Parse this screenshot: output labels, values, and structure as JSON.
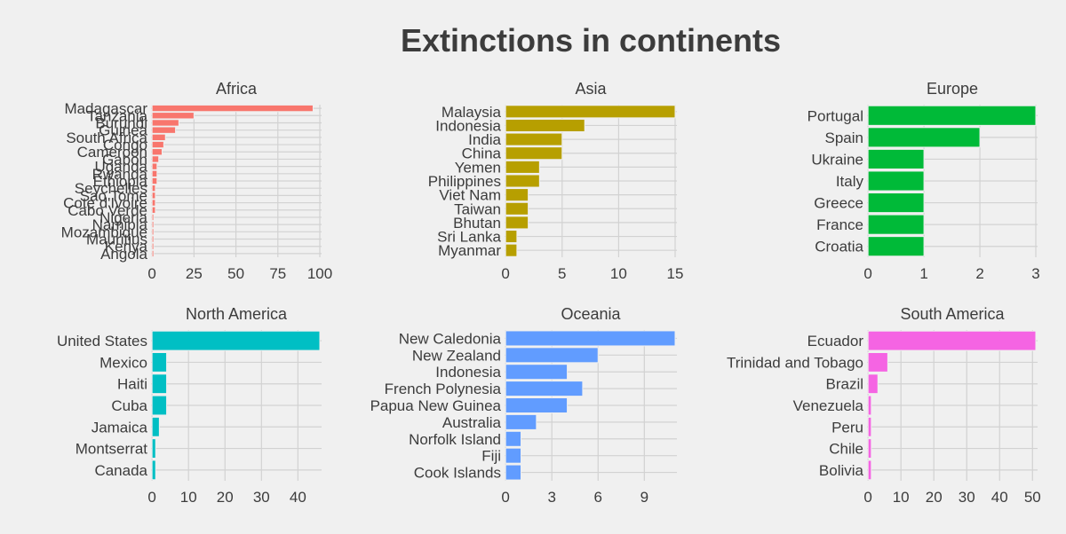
{
  "chart_data": {
    "type": "bar",
    "orientation": "horizontal",
    "title": "Extinctions in continents",
    "grid": true,
    "legend": "none",
    "facets": [
      {
        "name": "Africa",
        "color": "#f8766d",
        "xlim": [
          0,
          100
        ],
        "ticks": [
          0,
          25,
          50,
          75,
          100
        ],
        "categories": [
          "Madagascar",
          "Tanzania",
          "Burundi",
          "Guinea",
          "South Africa",
          "Congo",
          "Cameroon",
          "Gabon",
          "Uganda",
          "Rwanda",
          "Ethiopia",
          "Seychelles",
          "Sao Tome",
          "Cote d'Ivoire",
          "Cabo Verde",
          "Nigeria",
          "Namibia",
          "Mozambique",
          "Mauritius",
          "Kenya",
          "Angola"
        ],
        "values": [
          96,
          25,
          16,
          14,
          8,
          7,
          6,
          4,
          3,
          3,
          3,
          2,
          2,
          2,
          2,
          1,
          1,
          1,
          1,
          1,
          1
        ]
      },
      {
        "name": "Asia",
        "color": "#b79f00",
        "xlim": [
          0,
          15
        ],
        "ticks": [
          0,
          5,
          10,
          15
        ],
        "categories": [
          "Malaysia",
          "Indonesia",
          "India",
          "China",
          "Yemen",
          "Philippines",
          "Viet Nam",
          "Taiwan",
          "Bhutan",
          "Sri Lanka",
          "Myanmar"
        ],
        "values": [
          15,
          7,
          5,
          5,
          3,
          3,
          2,
          2,
          2,
          1,
          1
        ]
      },
      {
        "name": "Europe",
        "color": "#00ba38",
        "xlim": [
          0,
          3
        ],
        "ticks": [
          0,
          1,
          2,
          3
        ],
        "categories": [
          "Portugal",
          "Spain",
          "Ukraine",
          "Italy",
          "Greece",
          "France",
          "Croatia"
        ],
        "values": [
          3,
          2,
          1,
          1,
          1,
          1,
          1
        ]
      },
      {
        "name": "North America",
        "color": "#00bfc4",
        "xlim": [
          0,
          46
        ],
        "ticks": [
          0,
          10,
          20,
          30,
          40
        ],
        "categories": [
          "United States",
          "Mexico",
          "Haiti",
          "Cuba",
          "Jamaica",
          "Montserrat",
          "Canada"
        ],
        "values": [
          46,
          4,
          4,
          4,
          2,
          1,
          1
        ]
      },
      {
        "name": "Oceania",
        "color": "#619cff",
        "xlim": [
          0,
          11
        ],
        "ticks": [
          0,
          3,
          6,
          9
        ],
        "categories": [
          "New Caledonia",
          "New Zealand",
          "Indonesia",
          "French Polynesia",
          "Papua New Guinea",
          "Australia",
          "Norfolk Island",
          "Fiji",
          "Cook Islands"
        ],
        "values": [
          11,
          6,
          4,
          5,
          4,
          2,
          1,
          1,
          1
        ]
      },
      {
        "name": "South America",
        "color": "#f564e3",
        "xlim": [
          0,
          51
        ],
        "ticks": [
          0,
          10,
          20,
          30,
          40,
          50
        ],
        "categories": [
          "Ecuador",
          "Trinidad and Tobago",
          "Brazil",
          "Venezuela",
          "Peru",
          "Chile",
          "Bolivia"
        ],
        "values": [
          51,
          6,
          3,
          1,
          1,
          1,
          1
        ]
      }
    ]
  }
}
